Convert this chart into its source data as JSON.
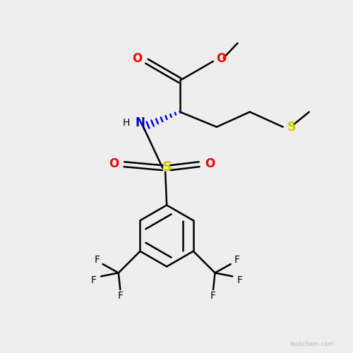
{
  "bg_color": "#eeeeee",
  "atom_colors": {
    "C": "#000000",
    "O": "#ff0000",
    "N": "#0000cc",
    "S_sulfonyl": "#cccc00",
    "S_thio": "#cccc00",
    "F": "#000000",
    "H": "#000000"
  },
  "bond_color": "#000000",
  "watermark": "lookchem.com"
}
